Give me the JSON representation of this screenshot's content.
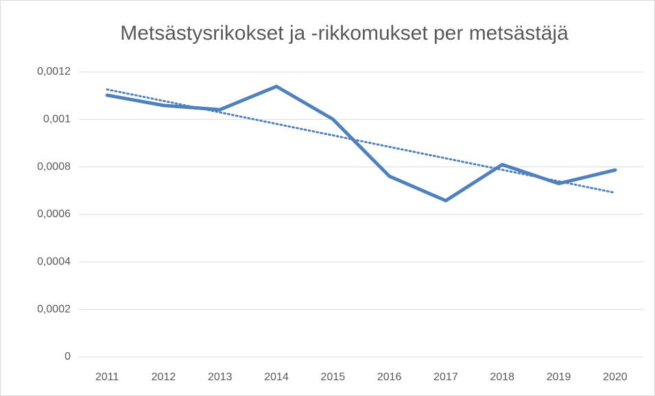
{
  "chart_data": {
    "type": "line",
    "title": "Metsästysrikokset ja -rikkomukset per metsästäjä",
    "categories": [
      "2011",
      "2012",
      "2013",
      "2014",
      "2015",
      "2016",
      "2017",
      "2018",
      "2019",
      "2020"
    ],
    "series": [
      {
        "color": "#4f81bd",
        "values": [
          0.001102,
          0.001059,
          0.001041,
          0.001139,
          0.001001,
          0.000761,
          0.000658,
          0.00081,
          0.00073,
          0.000787
        ]
      }
    ],
    "trendline": "linear",
    "ylim": [
      0,
      0.0012
    ],
    "yticks": [
      0,
      {
        "value": 0.0002,
        "label": "0,0002"
      },
      {
        "value": 0.0004,
        "label": "0,0004"
      },
      {
        "value": 0.0006,
        "label": "0,0006"
      },
      {
        "value": 0.0008,
        "label": "0,0008"
      },
      {
        "value": 0.001,
        "label": "0,001"
      },
      {
        "value": 0.0012,
        "label": "0,0012"
      }
    ],
    "grid": true
  }
}
